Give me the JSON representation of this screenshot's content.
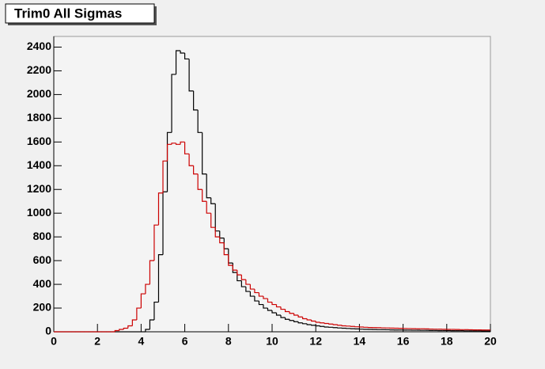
{
  "chart_data": {
    "type": "histogram",
    "title": "Trim0 All Sigmas",
    "bins": [
      0,
      0.2,
      0.4,
      0.6,
      0.8,
      1,
      1.2,
      1.4,
      1.6,
      1.8,
      2,
      2.2,
      2.4,
      2.6,
      2.8,
      3,
      3.2,
      3.4,
      3.6,
      3.8,
      4,
      4.2,
      4.4,
      4.6,
      4.8,
      5,
      5.2,
      5.4,
      5.6,
      5.8,
      6,
      6.2,
      6.4,
      6.6,
      6.8,
      7,
      7.2,
      7.4,
      7.6,
      7.8,
      8,
      8.2,
      8.4,
      8.6,
      8.8,
      9,
      9.2,
      9.4,
      9.6,
      9.8,
      10,
      10.2,
      10.4,
      10.6,
      10.8,
      11,
      11.2,
      11.4,
      11.6,
      11.8,
      12,
      12.2,
      12.4,
      12.6,
      12.8,
      13,
      13.2,
      13.4,
      13.6,
      13.8,
      14,
      14.2,
      14.4,
      14.6,
      14.8,
      15,
      15.2,
      15.4,
      15.6,
      15.8,
      16,
      16.2,
      16.4,
      16.6,
      16.8,
      17,
      17.2,
      17.4,
      17.6,
      17.8,
      18,
      18.2,
      18.4,
      18.6,
      18.8,
      19,
      19.2,
      19.4,
      19.6,
      19.8,
      20
    ],
    "series": [
      {
        "color": "#000000",
        "values": [
          0,
          0,
          0,
          0,
          0,
          0,
          0,
          0,
          0,
          0,
          0,
          0,
          0,
          0,
          0,
          0,
          0,
          0,
          0,
          0,
          0,
          20,
          100,
          250,
          650,
          1180,
          1680,
          2170,
          2370,
          2350,
          2300,
          2030,
          1870,
          1680,
          1330,
          1130,
          1080,
          850,
          790,
          700,
          580,
          500,
          430,
          380,
          340,
          300,
          260,
          230,
          200,
          180,
          160,
          140,
          120,
          105,
          95,
          85,
          75,
          68,
          60,
          55,
          50,
          45,
          40,
          38,
          35,
          32,
          30,
          28,
          26,
          24,
          22,
          21,
          20,
          19,
          18,
          18,
          17,
          16,
          15,
          15,
          14,
          14,
          13,
          13,
          12,
          12,
          11,
          11,
          10,
          10,
          10,
          9,
          9,
          9,
          8,
          8,
          8,
          8,
          7,
          7
        ]
      },
      {
        "color": "#cc0000",
        "values": [
          0,
          0,
          0,
          0,
          0,
          0,
          0,
          0,
          0,
          0,
          0,
          0,
          0,
          0,
          10,
          20,
          30,
          50,
          100,
          200,
          320,
          400,
          600,
          900,
          1170,
          1440,
          1580,
          1590,
          1580,
          1600,
          1500,
          1400,
          1330,
          1200,
          1100,
          1000,
          880,
          800,
          750,
          650,
          560,
          520,
          480,
          440,
          400,
          360,
          330,
          300,
          280,
          250,
          230,
          210,
          190,
          170,
          155,
          140,
          125,
          110,
          100,
          90,
          80,
          75,
          70,
          65,
          60,
          55,
          50,
          48,
          45,
          42,
          40,
          38,
          36,
          35,
          34,
          33,
          32,
          31,
          30,
          29,
          28,
          27,
          26,
          25,
          25,
          24,
          23,
          22,
          22,
          21,
          20,
          20,
          19,
          18,
          18,
          17,
          16,
          16,
          15,
          15
        ]
      }
    ],
    "xlim": [
      0,
      20
    ],
    "xticks": [
      0,
      2,
      4,
      6,
      8,
      10,
      12,
      14,
      16,
      18,
      20
    ],
    "ylim": [
      0,
      2490
    ],
    "yticks": [
      0,
      200,
      400,
      600,
      800,
      1000,
      1200,
      1400,
      1600,
      1800,
      2000,
      2200,
      2400
    ]
  }
}
